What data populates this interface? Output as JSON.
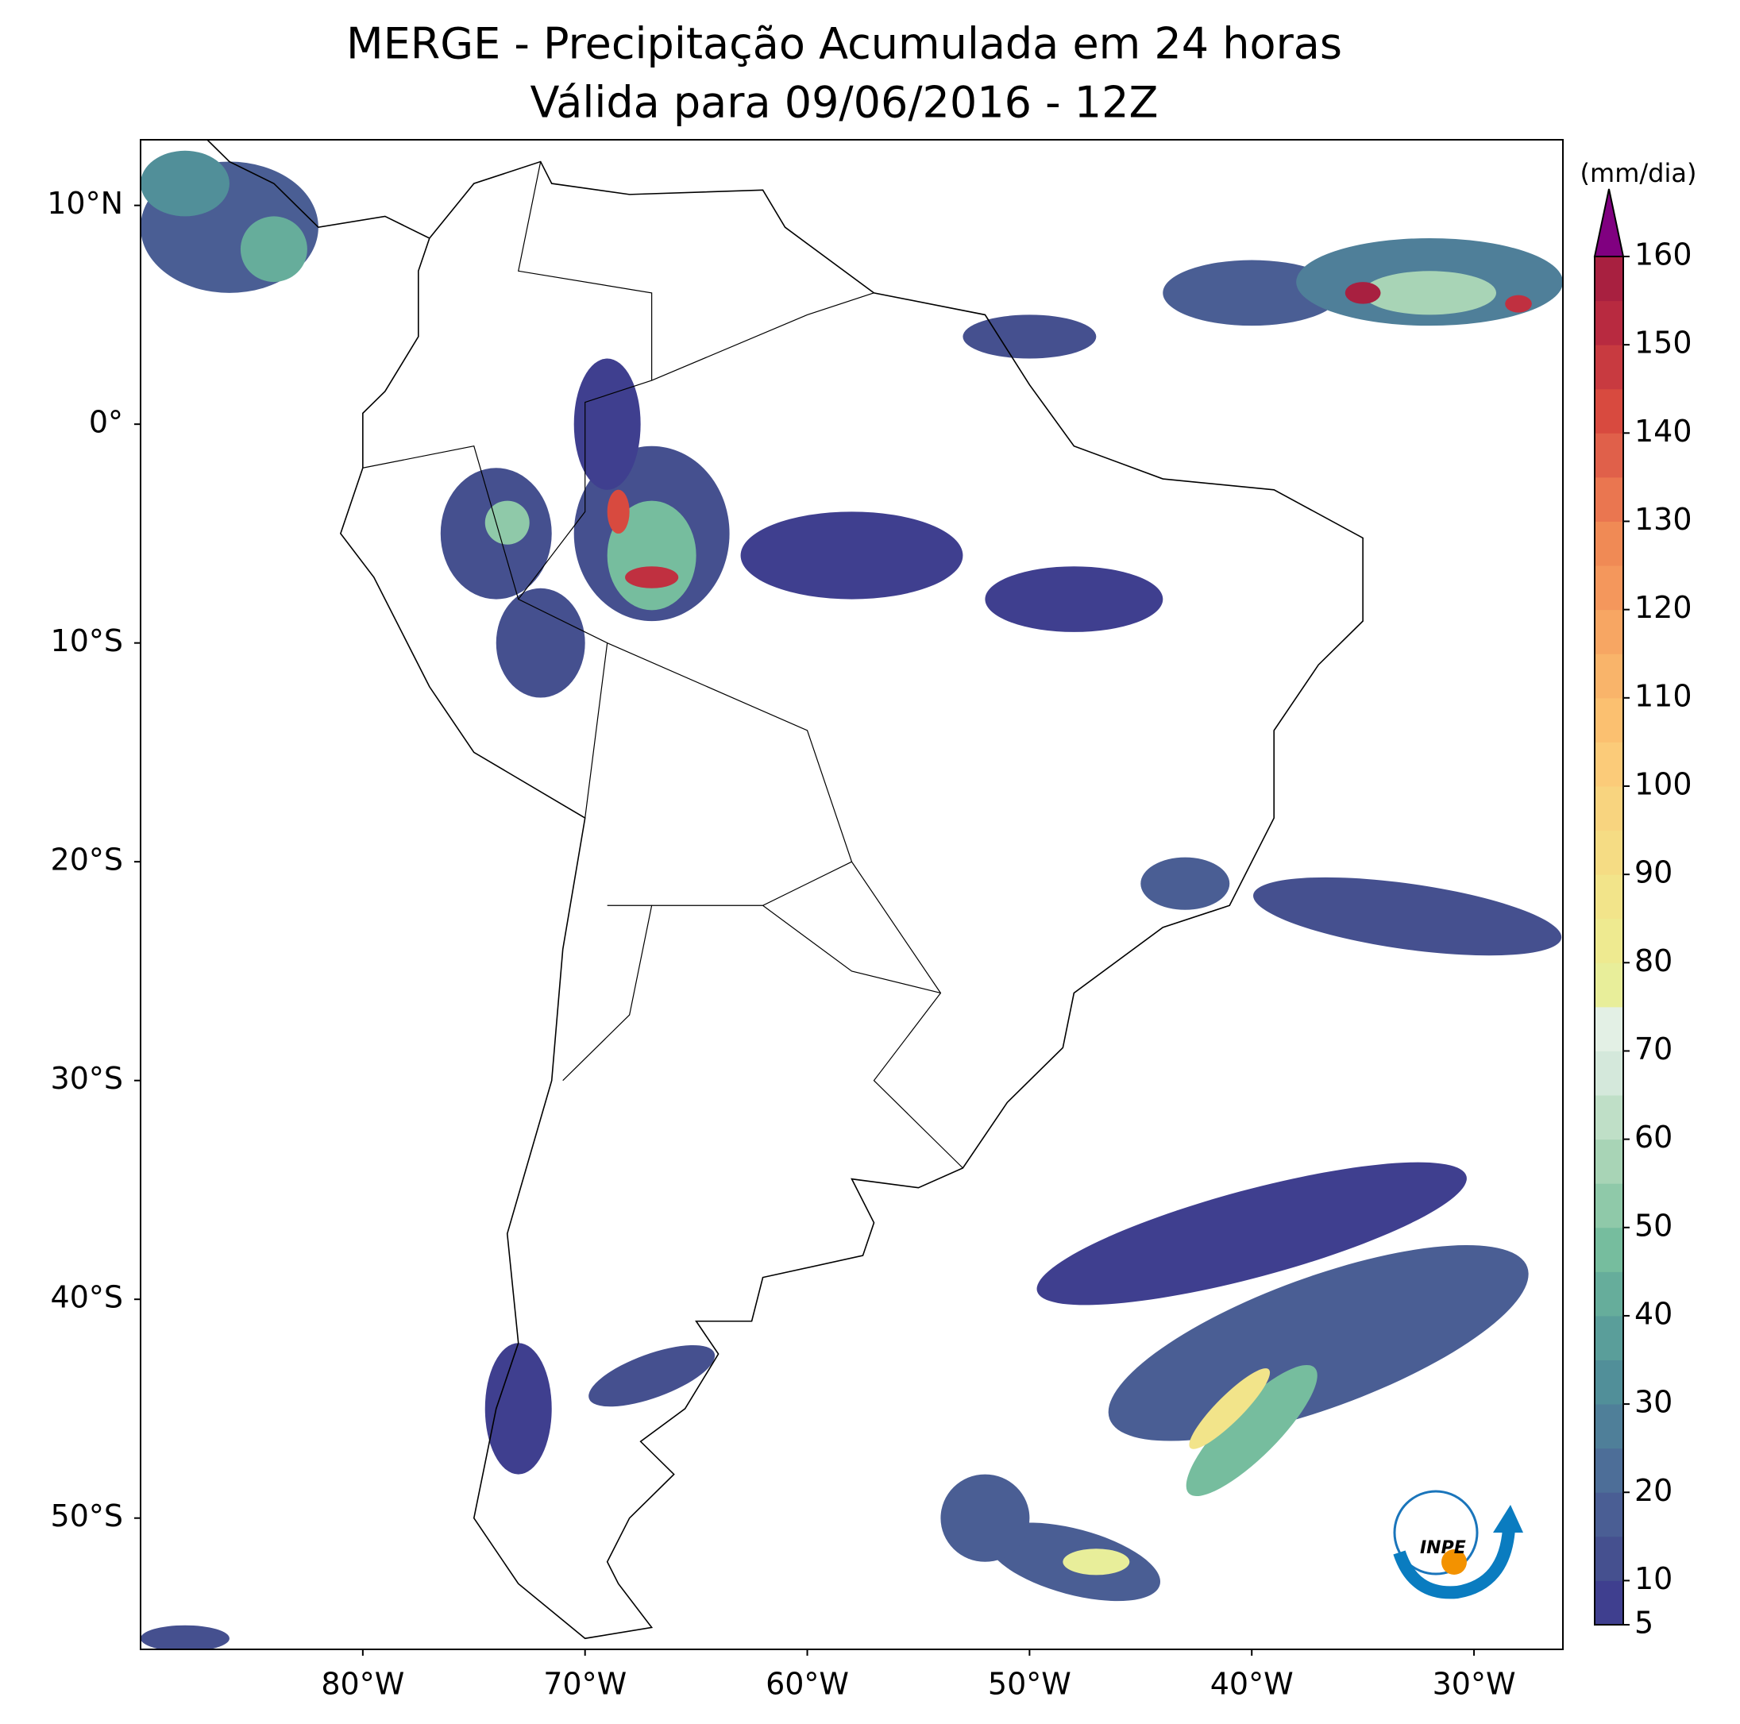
{
  "chart_data": {
    "type": "map",
    "title": "MERGE - Precipitação Acumulada em 24 horas",
    "subtitle": "Válida para 09/06/2016 - 12Z",
    "xlim": [
      -90,
      -26
    ],
    "ylim": [
      -56,
      13
    ],
    "xticks": [
      {
        "value": -80,
        "label": "80°W"
      },
      {
        "value": -70,
        "label": "70°W"
      },
      {
        "value": -60,
        "label": "60°W"
      },
      {
        "value": -50,
        "label": "50°W"
      },
      {
        "value": -40,
        "label": "40°W"
      },
      {
        "value": -30,
        "label": "30°W"
      }
    ],
    "yticks": [
      {
        "value": 10,
        "label": "10°N"
      },
      {
        "value": 0,
        "label": "0°"
      },
      {
        "value": -10,
        "label": "10°S"
      },
      {
        "value": -20,
        "label": "20°S"
      },
      {
        "value": -30,
        "label": "30°S"
      },
      {
        "value": -40,
        "label": "40°S"
      },
      {
        "value": -50,
        "label": "50°S"
      }
    ],
    "colorbar": {
      "label": "(mm/dia)",
      "clim": [
        5,
        160
      ],
      "ticks": [
        5,
        10,
        20,
        30,
        40,
        50,
        60,
        70,
        80,
        90,
        100,
        110,
        120,
        130,
        140,
        150,
        160
      ],
      "colors": [
        "#3f3f8f",
        "#45508f",
        "#4a5e94",
        "#4d6e98",
        "#4f7f99",
        "#518f99",
        "#5a9e9a",
        "#66ad9b",
        "#76bd9e",
        "#8fc9a9",
        "#a8d4b6",
        "#bfdfc7",
        "#d4e8db",
        "#e3f0e5",
        "#e8ee9a",
        "#eeea90",
        "#f2e48a",
        "#f5dc84",
        "#f8d47f",
        "#fbcb79",
        "#fbc070",
        "#f9b46a",
        "#f7a663",
        "#f4975c",
        "#f08a55",
        "#ea7650",
        "#e0604a",
        "#d84a3f",
        "#c83a40",
        "#b82a40",
        "#a82040"
      ],
      "extend_color": "#800080"
    },
    "logo_text": "INPE"
  }
}
